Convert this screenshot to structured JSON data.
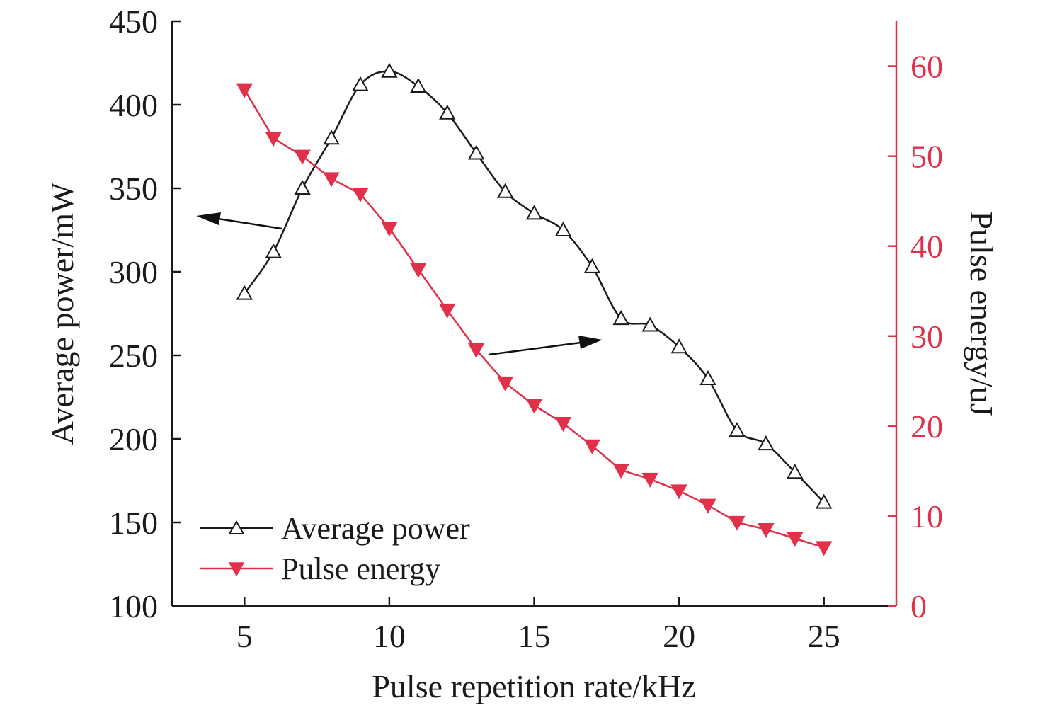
{
  "chart_data": {
    "type": "line",
    "x": [
      5,
      6,
      7,
      8,
      9,
      10,
      11,
      12,
      13,
      14,
      15,
      16,
      17,
      18,
      19,
      20,
      21,
      22,
      23,
      24,
      25
    ],
    "xlabel": "Pulse repetition rate/kHz",
    "xlim": [
      2.5,
      27.5
    ],
    "xticks": [
      5,
      10,
      15,
      20,
      25
    ],
    "ylabel_left": "Average power/mW",
    "ylim_left": [
      100,
      450
    ],
    "yticks_left": [
      100,
      150,
      200,
      250,
      300,
      350,
      400,
      450
    ],
    "ylabel_right": "Pulse energy/uJ",
    "ylim_right": [
      0,
      65
    ],
    "yticks_right": [
      0,
      10,
      20,
      30,
      40,
      50,
      60
    ],
    "grid": false,
    "legend_position": "bottom-left",
    "series": [
      {
        "name": "Average power",
        "axis": "left",
        "marker": "triangle-up-open",
        "color": "#1a1a1a",
        "values": [
          287,
          312,
          350,
          380,
          412,
          420,
          411,
          395,
          371,
          348,
          335,
          325,
          303,
          272,
          268,
          255,
          236,
          205,
          197,
          180,
          162
        ]
      },
      {
        "name": "Pulse energy",
        "axis": "right",
        "marker": "triangle-down-filled",
        "color": "#e0304a",
        "values": [
          57.4,
          52.0,
          50.0,
          47.5,
          45.8,
          42.0,
          37.4,
          32.9,
          28.5,
          24.8,
          22.3,
          20.3,
          17.8,
          15.1,
          14.1,
          12.8,
          11.2,
          9.3,
          8.5,
          7.5,
          6.5
        ]
      }
    ]
  }
}
